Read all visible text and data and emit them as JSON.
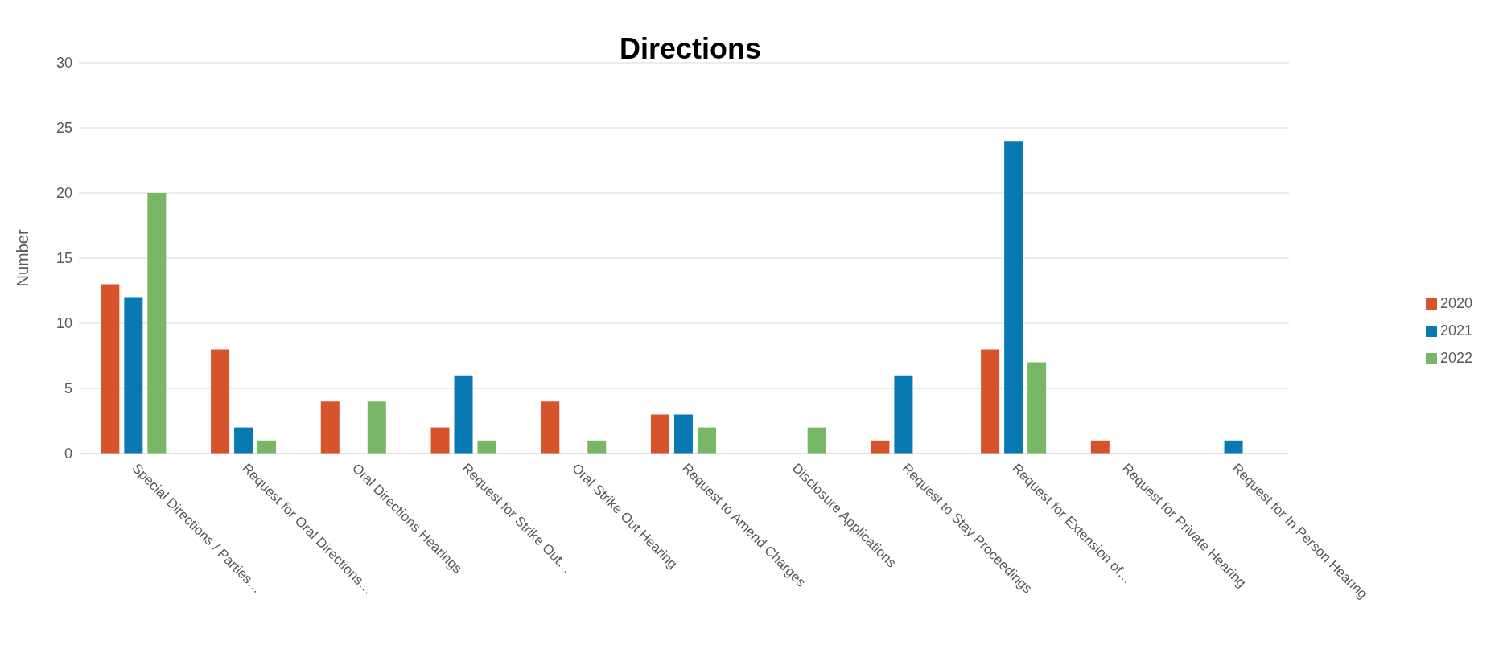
{
  "chart_data": {
    "type": "bar",
    "title": "Directions",
    "ylabel": "Number",
    "categories": [
      "Special Directions / Parties…",
      "Request for Oral Directions…",
      "Oral Directions Hearings",
      "Request for Strike Out…",
      "Oral Strike Out Hearing",
      "Request to Amend Charges",
      "Disclosure Applications",
      "Request to Stay Proceedings",
      "Request for Extension of…",
      "Request for Private Hearing",
      "Request for In Person Hearing"
    ],
    "series": [
      {
        "name": "2020",
        "color": "#d6532c",
        "values": [
          13,
          8,
          4,
          2,
          4,
          3,
          null,
          1,
          8,
          1,
          null
        ]
      },
      {
        "name": "2021",
        "color": "#0979b4",
        "values": [
          12,
          2,
          null,
          6,
          null,
          3,
          null,
          6,
          24,
          null,
          1
        ]
      },
      {
        "name": "2022",
        "color": "#77b766",
        "values": [
          20,
          1,
          4,
          1,
          1,
          2,
          2,
          null,
          7,
          null,
          null
        ]
      }
    ],
    "ylim": [
      0,
      30
    ],
    "yticks": [
      0,
      5,
      10,
      15,
      20,
      25,
      30
    ],
    "grid": "y",
    "legend": "right"
  }
}
